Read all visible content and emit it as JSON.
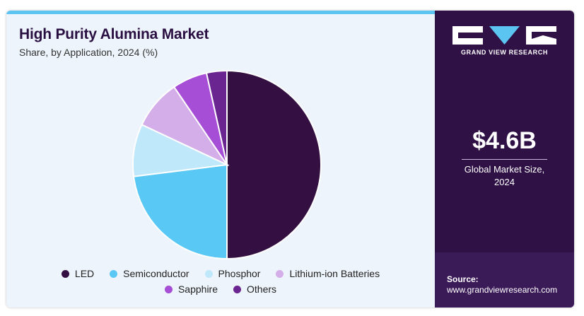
{
  "header": {
    "title": "High Purity Alumina Market",
    "subtitle": "Share, by Application, 2024 (%)"
  },
  "sidebar": {
    "brand": "GRAND VIEW RESEARCH",
    "market_value": "$4.6B",
    "market_label_line1": "Global Market Size,",
    "market_label_line2": "2024",
    "source_label": "Source:",
    "source_url": "www.grandviewresearch.com"
  },
  "colors": {
    "panel_bg": "#edf4fb",
    "sidebar_bg": "#2f1146",
    "accent_bar": "#5bc4f1"
  },
  "chart_data": {
    "type": "pie",
    "title": "High Purity Alumina Market",
    "subtitle": "Share, by Application, 2024 (%)",
    "start_angle_deg": 0,
    "direction": "clockwise",
    "legend_position": "bottom",
    "slices": [
      {
        "label": "LED",
        "value": 50,
        "color": "#341042"
      },
      {
        "label": "Semiconductor",
        "value": 23,
        "color": "#5ac8f5"
      },
      {
        "label": "Phosphor",
        "value": 9,
        "color": "#bfe8fa"
      },
      {
        "label": "Lithium-ion Batteries",
        "value": 8.5,
        "color": "#d4aee8"
      },
      {
        "label": "Sapphire",
        "value": 6,
        "color": "#a64fd6"
      },
      {
        "label": "Others",
        "value": 3.5,
        "color": "#6a2590"
      }
    ]
  }
}
